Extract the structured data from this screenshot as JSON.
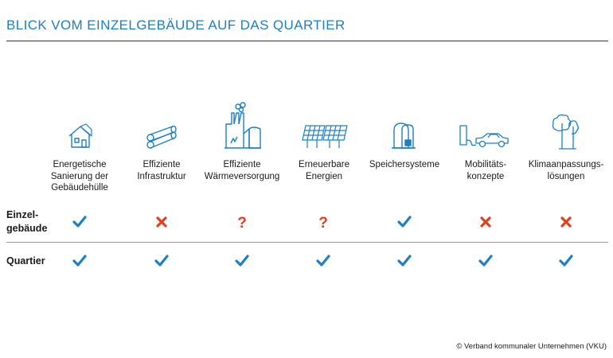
{
  "title": "BLICK VOM EINZELGEBÄUDE AUF DAS QUARTIER",
  "categories": [
    {
      "icon": "house-icon",
      "label": "Energetische Sanierung der Gebäudehülle"
    },
    {
      "icon": "pipes-icon",
      "label": "Effiziente Infrastruktur"
    },
    {
      "icon": "power-plant-icon",
      "label": "Effiziente Wärmeversorgung"
    },
    {
      "icon": "solar-panels-icon",
      "label": "Erneuerbare Energien"
    },
    {
      "icon": "storage-tank-icon",
      "label": "Speichersysteme"
    },
    {
      "icon": "electric-car-icon",
      "label": "Mobilitäts-\nkonzepte"
    },
    {
      "icon": "trees-icon",
      "label": "Klimaanpassungs-\nlösungen"
    }
  ],
  "rows": [
    {
      "label": "Einzel-\ngebäude",
      "marks": [
        "check",
        "cross",
        "question",
        "question",
        "check",
        "cross",
        "cross"
      ]
    },
    {
      "label": "Quartier",
      "marks": [
        "check",
        "check",
        "check",
        "check",
        "check",
        "check",
        "check"
      ]
    }
  ],
  "colors": {
    "title": "#1d7fc4",
    "icon": "#1d7fc4",
    "check": "#1d7fc4",
    "cross": "#e2401c",
    "question": "#e2401c"
  },
  "footer": "© Verband kommunaler Unternehmen (VKU)"
}
